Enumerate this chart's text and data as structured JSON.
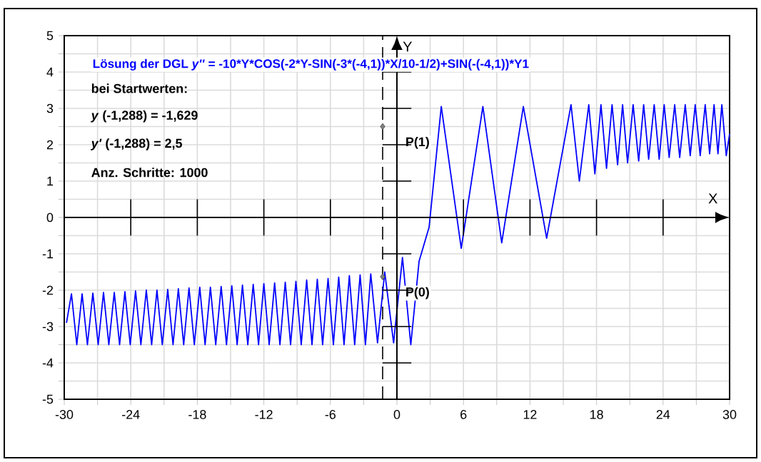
{
  "chart_data": {
    "type": "line",
    "title": "Lösung der DGL *y''* = -10*Y*COS(-2*Y-SIN(-3*(-4,1))*X/10-1/2)+SIN(-(-4,1))*Y1",
    "xlabel": "X",
    "ylabel": "Y",
    "annotations": [
      "bei Startwerten:",
      "*y* (-1,288) = -1,629",
      "*y'* (-1,288) = 2,5",
      "Anz. Schritte: 1000",
      {
        "text": "P(1)",
        "x": -1.288,
        "y": 2.5
      },
      {
        "text": "P(0)",
        "x": -1.288,
        "y": -1.629
      }
    ],
    "series": [
      {
        "color": "#0000ff",
        "x": [
          -29.8,
          -29.35,
          -28.87,
          -28.39,
          -27.91,
          -27.42,
          -26.94,
          -26.46,
          -25.98,
          -25.49,
          -25.01,
          -24.53,
          -24.05,
          -23.57,
          -23.09,
          -22.6,
          -22.12,
          -21.64,
          -21.16,
          -20.67,
          -20.19,
          -19.71,
          -19.23,
          -18.75,
          -18.27,
          -17.78,
          -17.3,
          -16.82,
          -16.34,
          -15.85,
          -15.37,
          -14.89,
          -14.41,
          -13.93,
          -13.45,
          -12.96,
          -12.48,
          -12.0,
          -11.52,
          -11.03,
          -10.55,
          -10.07,
          -9.59,
          -9.11,
          -8.63,
          -8.14,
          -7.66,
          -7.18,
          -6.7,
          -6.21,
          -5.73,
          -5.25,
          -4.77,
          -4.29,
          -3.81,
          -3.32,
          -2.84,
          -2.36,
          -1.75,
          -1.1,
          -0.3,
          0.5,
          1.25,
          2.0,
          2.9,
          4.0,
          5.8,
          7.75,
          9.45,
          11.4,
          13.5,
          15.7,
          16.45,
          17.3,
          17.85,
          18.4,
          18.9,
          19.4,
          19.9,
          20.35,
          20.8,
          21.3,
          21.8,
          22.25,
          22.7,
          23.2,
          23.65,
          24.1,
          24.55,
          25.05,
          25.5,
          26.0,
          26.45,
          26.9,
          27.35,
          27.8,
          28.2,
          28.6,
          28.95,
          29.3,
          29.7,
          30
        ],
        "values": [
          -2.9,
          -2.1,
          -3.5,
          -2.1,
          -3.5,
          -2.08,
          -3.5,
          -2.06,
          -3.5,
          -2.06,
          -3.5,
          -2.04,
          -3.5,
          -2.02,
          -3.5,
          -2.0,
          -3.5,
          -2.0,
          -3.5,
          -1.98,
          -3.5,
          -1.96,
          -3.5,
          -1.94,
          -3.5,
          -1.92,
          -3.5,
          -1.92,
          -3.5,
          -1.9,
          -3.5,
          -1.88,
          -3.5,
          -1.86,
          -3.5,
          -1.84,
          -3.5,
          -1.82,
          -3.5,
          -1.8,
          -3.5,
          -1.78,
          -3.5,
          -1.76,
          -3.5,
          -1.72,
          -3.5,
          -1.7,
          -3.5,
          -1.68,
          -3.5,
          -1.64,
          -3.5,
          -1.6,
          -3.5,
          -1.58,
          -3.5,
          -1.55,
          -3.45,
          -1.5,
          -3.45,
          -1.1,
          -3.5,
          -1.2,
          -0.27,
          3.05,
          -0.85,
          3.05,
          -0.7,
          3.05,
          -0.57,
          3.1,
          1.0,
          3.1,
          1.2,
          3.1,
          1.35,
          3.1,
          1.45,
          3.1,
          1.5,
          3.1,
          1.55,
          3.1,
          1.6,
          3.1,
          1.6,
          3.1,
          1.65,
          3.1,
          1.65,
          3.1,
          1.7,
          3.1,
          1.7,
          3.1,
          1.75,
          3.1,
          1.75,
          3.1,
          1.7,
          2.3
        ]
      },
      {
        "type": "scatter",
        "color": "#808080",
        "marker": "diamond",
        "x": [
          -1.288,
          -1.288
        ],
        "values": [
          2.5,
          -1.63
        ]
      }
    ],
    "xlim": [
      -30,
      30
    ],
    "xticks": [
      -30,
      {
        "value": -27,
        "label": null
      },
      -24,
      {
        "value": -21,
        "label": null
      },
      -18,
      {
        "value": -15,
        "label": null
      },
      -12,
      {
        "value": -9,
        "label": null
      },
      -6,
      {
        "value": -3,
        "label": null
      },
      0,
      {
        "value": 3,
        "label": null
      },
      6,
      {
        "value": 9,
        "label": null
      },
      12,
      {
        "value": 15,
        "label": null
      },
      18,
      {
        "value": 21,
        "label": null
      },
      24,
      {
        "value": 27,
        "label": null
      },
      30
    ],
    "ylim": [
      -5,
      5
    ],
    "yticks": [
      -5,
      {
        "value": -4.5,
        "label": null
      },
      -4,
      {
        "value": -3.5,
        "label": null
      },
      -3,
      {
        "value": -2.5,
        "label": null
      },
      -2,
      {
        "value": -1.5,
        "label": null
      },
      -1,
      {
        "value": -0.5,
        "label": null
      },
      0,
      {
        "value": 0.5,
        "label": null
      },
      1,
      {
        "value": 1.5,
        "label": null
      },
      2,
      {
        "value": 2.5,
        "label": null
      },
      3,
      {
        "value": 3.5,
        "label": null
      },
      4,
      {
        "value": 4.5,
        "label": null
      },
      5
    ],
    "ref_lines": [
      {
        "axis": "x",
        "value": -1.288,
        "line_style": "dashed"
      }
    ],
    "grid": true
  }
}
